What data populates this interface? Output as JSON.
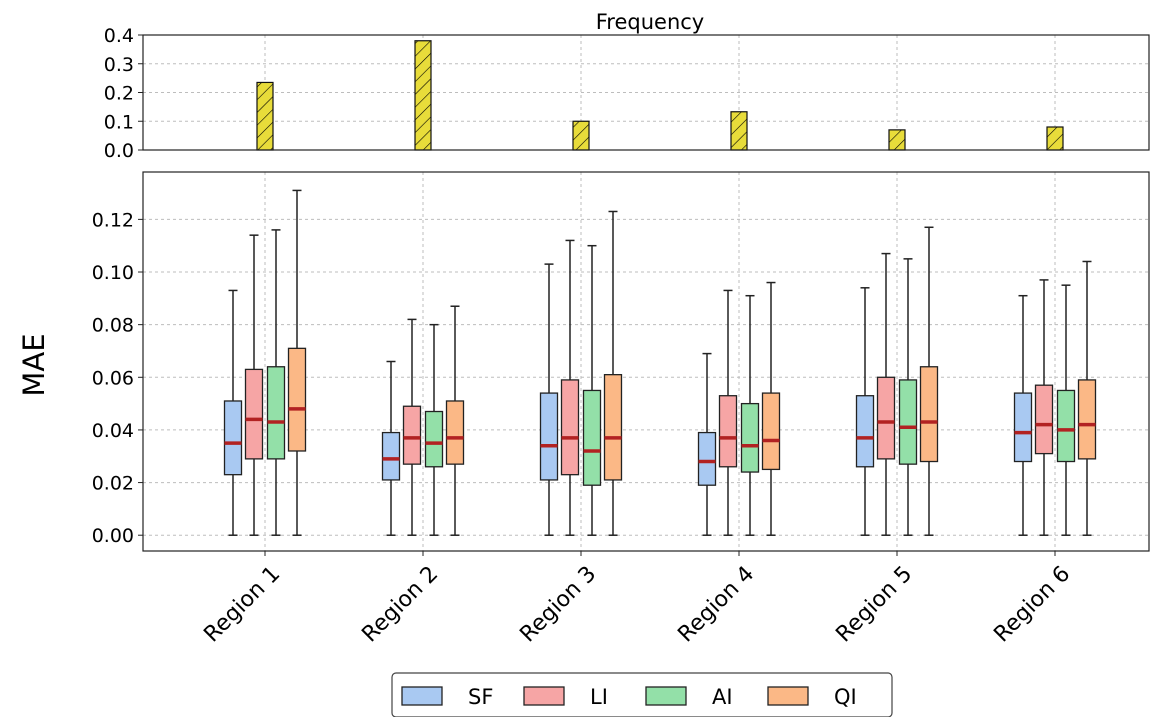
{
  "chart_data": [
    {
      "type": "bar",
      "title": "Frequency",
      "categories": [
        "Region 1",
        "Region 2",
        "Region 3",
        "Region 4",
        "Region 5",
        "Region 6"
      ],
      "values": [
        0.235,
        0.38,
        0.1,
        0.133,
        0.07,
        0.08
      ],
      "ylim": [
        0,
        0.4
      ],
      "yticks": [
        "0.0",
        "0.1",
        "0.2",
        "0.3",
        "0.4"
      ],
      "bar_color": "#e8dc3a",
      "hatch": "diagonal",
      "grid": true
    },
    {
      "type": "box",
      "ylabel": "MAE",
      "categories": [
        "Region 1",
        "Region 2",
        "Region 3",
        "Region 4",
        "Region 5",
        "Region 6"
      ],
      "ylim": [
        -0.006,
        0.138
      ],
      "yticks": [
        "0.00",
        "0.02",
        "0.04",
        "0.06",
        "0.08",
        "0.10",
        "0.12"
      ],
      "grid": true,
      "legend_position": "bottom-center",
      "median_color": "#b22222",
      "series": [
        {
          "name": "SF",
          "color": "#a9c9f2",
          "boxes": [
            {
              "min": 0.0,
              "q1": 0.023,
              "median": 0.035,
              "q3": 0.051,
              "max": 0.093
            },
            {
              "min": 0.0,
              "q1": 0.021,
              "median": 0.029,
              "q3": 0.039,
              "max": 0.066
            },
            {
              "min": 0.0,
              "q1": 0.021,
              "median": 0.034,
              "q3": 0.054,
              "max": 0.103
            },
            {
              "min": 0.0,
              "q1": 0.019,
              "median": 0.028,
              "q3": 0.039,
              "max": 0.069
            },
            {
              "min": 0.0,
              "q1": 0.026,
              "median": 0.037,
              "q3": 0.053,
              "max": 0.094
            },
            {
              "min": 0.0,
              "q1": 0.028,
              "median": 0.039,
              "q3": 0.054,
              "max": 0.091
            }
          ]
        },
        {
          "name": "LI",
          "color": "#f6a5a5",
          "boxes": [
            {
              "min": 0.0,
              "q1": 0.029,
              "median": 0.044,
              "q3": 0.063,
              "max": 0.114
            },
            {
              "min": 0.0,
              "q1": 0.027,
              "median": 0.037,
              "q3": 0.049,
              "max": 0.082
            },
            {
              "min": 0.0,
              "q1": 0.023,
              "median": 0.037,
              "q3": 0.059,
              "max": 0.112
            },
            {
              "min": 0.0,
              "q1": 0.026,
              "median": 0.037,
              "q3": 0.053,
              "max": 0.093
            },
            {
              "min": 0.0,
              "q1": 0.029,
              "median": 0.043,
              "q3": 0.06,
              "max": 0.107
            },
            {
              "min": 0.0,
              "q1": 0.031,
              "median": 0.042,
              "q3": 0.057,
              "max": 0.097
            }
          ]
        },
        {
          "name": "AI",
          "color": "#93e0a8",
          "boxes": [
            {
              "min": 0.0,
              "q1": 0.029,
              "median": 0.043,
              "q3": 0.064,
              "max": 0.116
            },
            {
              "min": 0.0,
              "q1": 0.026,
              "median": 0.035,
              "q3": 0.047,
              "max": 0.08
            },
            {
              "min": 0.0,
              "q1": 0.019,
              "median": 0.032,
              "q3": 0.055,
              "max": 0.11
            },
            {
              "min": 0.0,
              "q1": 0.024,
              "median": 0.034,
              "q3": 0.05,
              "max": 0.091
            },
            {
              "min": 0.0,
              "q1": 0.027,
              "median": 0.041,
              "q3": 0.059,
              "max": 0.105
            },
            {
              "min": 0.0,
              "q1": 0.028,
              "median": 0.04,
              "q3": 0.055,
              "max": 0.095
            }
          ]
        },
        {
          "name": "QI",
          "color": "#fbb886",
          "boxes": [
            {
              "min": 0.0,
              "q1": 0.032,
              "median": 0.048,
              "q3": 0.071,
              "max": 0.131
            },
            {
              "min": 0.0,
              "q1": 0.027,
              "median": 0.037,
              "q3": 0.051,
              "max": 0.087
            },
            {
              "min": 0.0,
              "q1": 0.021,
              "median": 0.037,
              "q3": 0.061,
              "max": 0.123
            },
            {
              "min": 0.0,
              "q1": 0.025,
              "median": 0.036,
              "q3": 0.054,
              "max": 0.096
            },
            {
              "min": 0.0,
              "q1": 0.028,
              "median": 0.043,
              "q3": 0.064,
              "max": 0.117
            },
            {
              "min": 0.0,
              "q1": 0.029,
              "median": 0.042,
              "q3": 0.059,
              "max": 0.104
            }
          ]
        }
      ]
    }
  ]
}
